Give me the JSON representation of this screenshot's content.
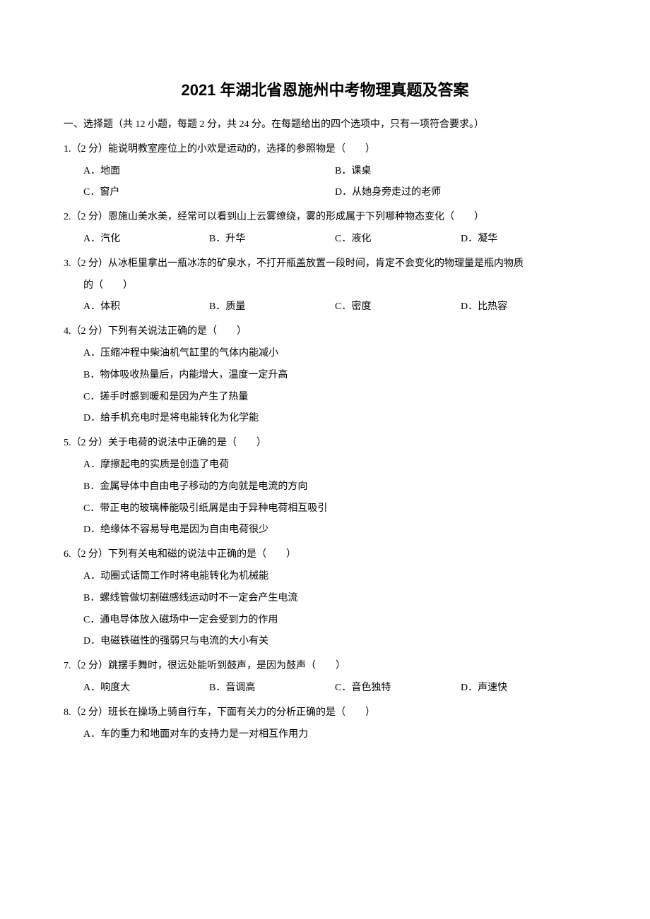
{
  "title": "2021 年湖北省恩施州中考物理真题及答案",
  "section1": {
    "header": "一、选择题（共 12 小题，每题 2 分，共 24 分。在每题给出的四个选项中，只有一项符合要求。）"
  },
  "q1": {
    "text": "1.（2 分）能说明教室座位上的小欢是运动的，选择的参照物是（　　）",
    "optA": "A．地面",
    "optB": "B．课桌",
    "optC": "C．窗户",
    "optD": "D．从她身旁走过的老师"
  },
  "q2": {
    "text": "2.（2 分）恩施山美水美，经常可以看到山上云雾缭绕，雾的形成属于下列哪种物态变化（　　）",
    "optA": "A．汽化",
    "optB": "B．升华",
    "optC": "C．液化",
    "optD": "D．凝华"
  },
  "q3": {
    "text": "3.（2 分）从冰柜里拿出一瓶冰冻的矿泉水，不打开瓶盖放置一段时间，肯定不会变化的物理量是瓶内物质",
    "cont": "的（　　）",
    "optA": "A．体积",
    "optB": "B．质量",
    "optC": "C．密度",
    "optD": "D．比热容"
  },
  "q4": {
    "text": "4.（2 分）下列有关说法正确的是（　　）",
    "optA": "A．压缩冲程中柴油机气缸里的气体内能减小",
    "optB": "B．物体吸收热量后，内能增大，温度一定升高",
    "optC": "C．搓手时感到暖和是因为产生了热量",
    "optD": "D．给手机充电时是将电能转化为化学能"
  },
  "q5": {
    "text": "5.（2 分）关于电荷的说法中正确的是（　　）",
    "optA": "A．摩擦起电的实质是创造了电荷",
    "optB": "B．金属导体中自由电子移动的方向就是电流的方向",
    "optC": "C．带正电的玻璃棒能吸引纸屑是由于异种电荷相互吸引",
    "optD": "D．绝缘体不容易导电是因为自由电荷很少"
  },
  "q6": {
    "text": "6.（2 分）下列有关电和磁的说法中正确的是（　　）",
    "optA": "A．动圈式话筒工作时将电能转化为机械能",
    "optB": "B．螺线管做切割磁感线运动时不一定会产生电流",
    "optC": "C．通电导体放入磁场中一定会受到力的作用",
    "optD": "D．电磁铁磁性的强弱只与电流的大小有关"
  },
  "q7": {
    "text": "7.（2 分）跳摆手舞时，很远处能听到鼓声，是因为鼓声（　　）",
    "optA": "A．响度大",
    "optB": "B．音调高",
    "optC": "C．音色独特",
    "optD": "D．声速快"
  },
  "q8": {
    "text": "8.（2 分）班长在操场上骑自行车，下面有关力的分析正确的是（　　）",
    "optA": "A．车的重力和地面对车的支持力是一对相互作用力"
  }
}
